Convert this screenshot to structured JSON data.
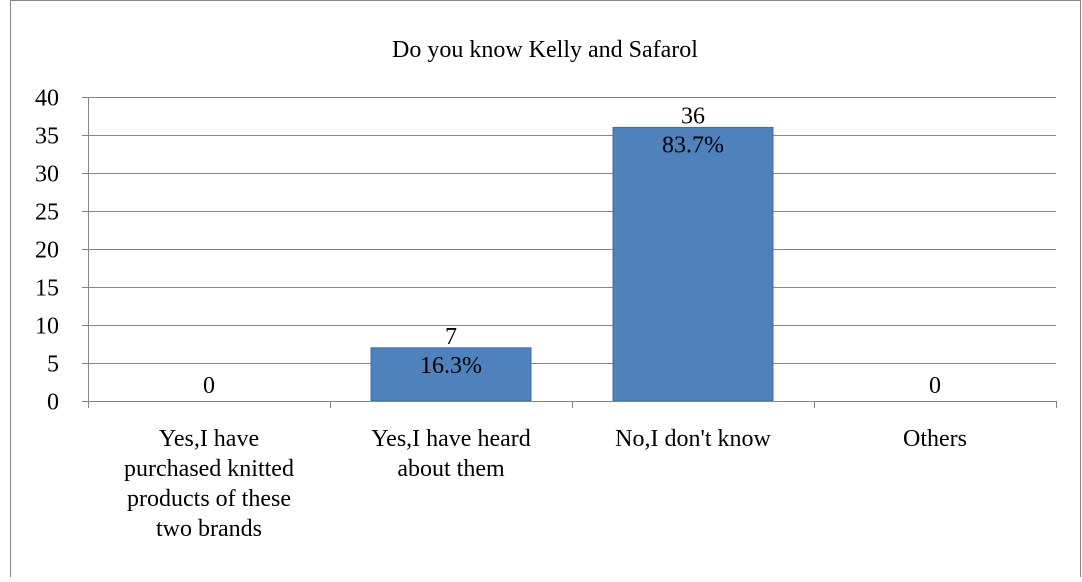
{
  "chart_data": {
    "type": "bar",
    "title": "Do you know Kelly and Safarol",
    "categories": [
      [
        "Yes,I have",
        "purchased knitted",
        "products of these",
        "two brands"
      ],
      [
        "Yes,I have heard",
        "about them"
      ],
      [
        "No,I don't know"
      ],
      [
        "Others"
      ]
    ],
    "values": [
      0,
      7,
      36,
      0
    ],
    "data_labels": [
      [
        "0"
      ],
      [
        "7",
        "16.3%"
      ],
      [
        "36",
        "83.7%"
      ],
      [
        "0"
      ]
    ],
    "xlabel": "",
    "ylabel": "",
    "ylim": [
      0,
      40
    ],
    "yticks": [
      0,
      5,
      10,
      15,
      20,
      25,
      30,
      35,
      40
    ],
    "grid": true,
    "legend": "none",
    "colors": {
      "bar": "#4f81bd",
      "bar_border": "#3e6da8",
      "grid": "#868686",
      "axis": "#868686",
      "frame": "#868686"
    }
  }
}
